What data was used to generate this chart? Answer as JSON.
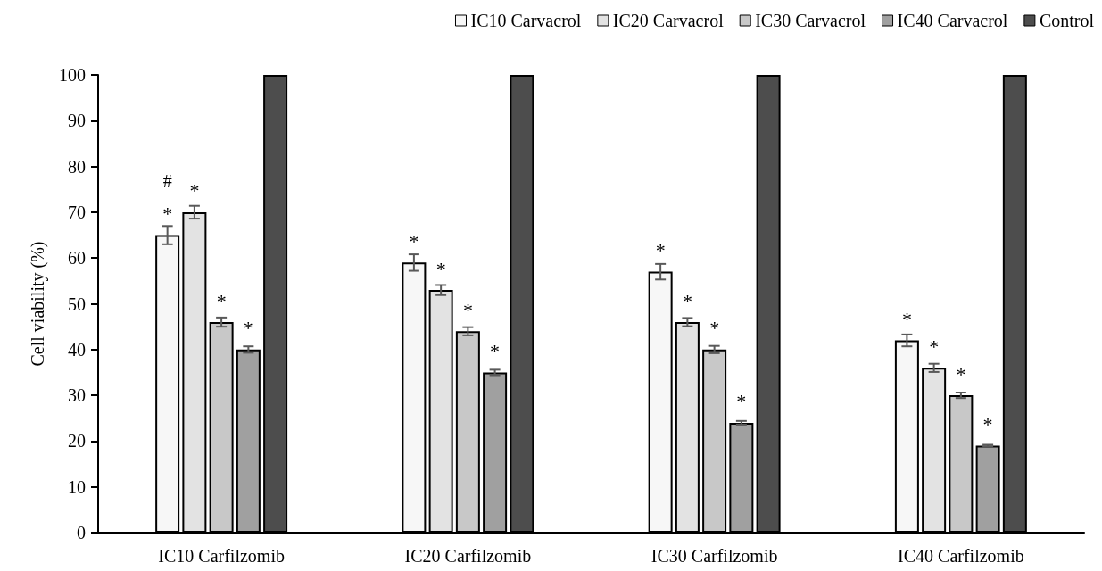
{
  "chart_data": {
    "type": "bar",
    "ylabel": "Cell viability (%)",
    "categories": [
      "IC10 Carfilzomib",
      "IC20 Carfilzomib",
      "IC30 Carfilzomib",
      "IC40 Carfilzomib"
    ],
    "series": [
      {
        "name": "IC10 Carvacrol",
        "color": "#f7f7f7",
        "values": [
          65,
          59,
          57,
          42
        ],
        "errors": [
          2,
          1.8,
          1.7,
          1.3
        ],
        "value_labels": [
          "*",
          "*",
          "*",
          "*"
        ]
      },
      {
        "name": "IC20 Carvacrol",
        "color": "#e3e3e3",
        "values": [
          70,
          53,
          46,
          36
        ],
        "errors": [
          1.4,
          1.1,
          0.9,
          0.9
        ],
        "value_labels": [
          "*",
          "*",
          "*",
          "*"
        ]
      },
      {
        "name": "IC30 Carvacrol",
        "color": "#c8c8c8",
        "values": [
          46,
          44,
          40,
          30
        ],
        "errors": [
          1,
          0.9,
          0.8,
          0.6
        ],
        "value_labels": [
          "*",
          "*",
          "*",
          "*"
        ]
      },
      {
        "name": "IC40 Carvacrol",
        "color": "#a0a0a0",
        "values": [
          40,
          35,
          24,
          19
        ],
        "errors": [
          0.7,
          0.6,
          0.4,
          0.2
        ],
        "value_labels": [
          "*",
          "*",
          "*",
          "*"
        ]
      },
      {
        "name": "Control",
        "color": "#4d4d4d",
        "values": [
          100,
          100,
          100,
          100
        ]
      }
    ],
    "ylim": [
      0,
      100
    ],
    "yticks": [
      0,
      10,
      20,
      30,
      40,
      50,
      60,
      70,
      80,
      90,
      100
    ],
    "grid": false,
    "legend": "top right",
    "annotations": [
      "#"
    ]
  }
}
